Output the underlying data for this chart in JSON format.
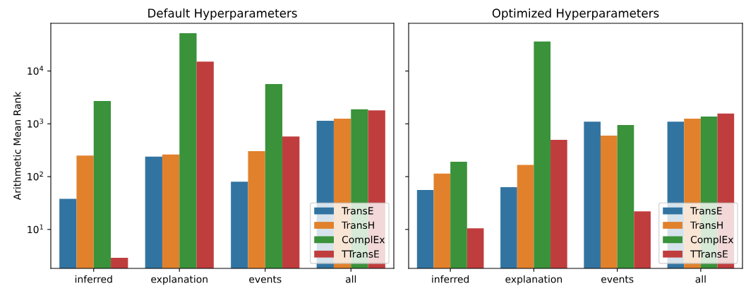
{
  "chart_data": [
    {
      "type": "bar",
      "title": "Default Hyperparameters",
      "ylabel": "Arithmetic Mean Rank",
      "categories": [
        "inferred",
        "explanation",
        "events",
        "all"
      ],
      "log": "y",
      "ylim": [
        1.83,
        80000
      ],
      "yticks": [
        {
          "value": 10,
          "label": "10$^{1}$"
        },
        {
          "value": 100,
          "label": "10$^{2}$"
        },
        {
          "value": 1000,
          "label": "10$^{3}$"
        },
        {
          "value": 10000,
          "label": "10$^{4}$"
        }
      ],
      "legend": "bottom right",
      "series": [
        {
          "name": "TransE",
          "color": "#3274a1",
          "values": [
            38,
            240,
            80,
            1140
          ]
        },
        {
          "name": "TransH",
          "color": "#e1812c",
          "values": [
            250,
            263,
            303,
            1250
          ]
        },
        {
          "name": "ComplEx",
          "color": "#3a923a",
          "values": [
            2710,
            51800,
            5680,
            1890
          ]
        },
        {
          "name": "TTransE",
          "color": "#c03d3e",
          "values": [
            2.9,
            15100,
            574,
            1800
          ]
        }
      ]
    },
    {
      "type": "bar",
      "title": "Optimized Hyperparameters",
      "categories": [
        "inferred",
        "explanation",
        "events",
        "all"
      ],
      "log": "y",
      "ylim": [
        1.83,
        80000
      ],
      "yticks": [
        {
          "value": 10,
          "label": null
        },
        {
          "value": 100,
          "label": null
        },
        {
          "value": 1000,
          "label": null
        },
        {
          "value": 10000,
          "label": null
        }
      ],
      "tick_labels": "x",
      "legend": "bottom right",
      "series": [
        {
          "name": "TransE",
          "color": "#3274a1",
          "values": [
            56,
            63,
            1100,
            1100
          ]
        },
        {
          "name": "TransH",
          "color": "#e1812c",
          "values": [
            114,
            167,
            598,
            1250
          ]
        },
        {
          "name": "ComplEx",
          "color": "#3a923a",
          "values": [
            191,
            36100,
            950,
            1375
          ]
        },
        {
          "name": "TTransE",
          "color": "#c03d3e",
          "values": [
            10.5,
            497,
            22,
            1570
          ]
        }
      ]
    }
  ]
}
